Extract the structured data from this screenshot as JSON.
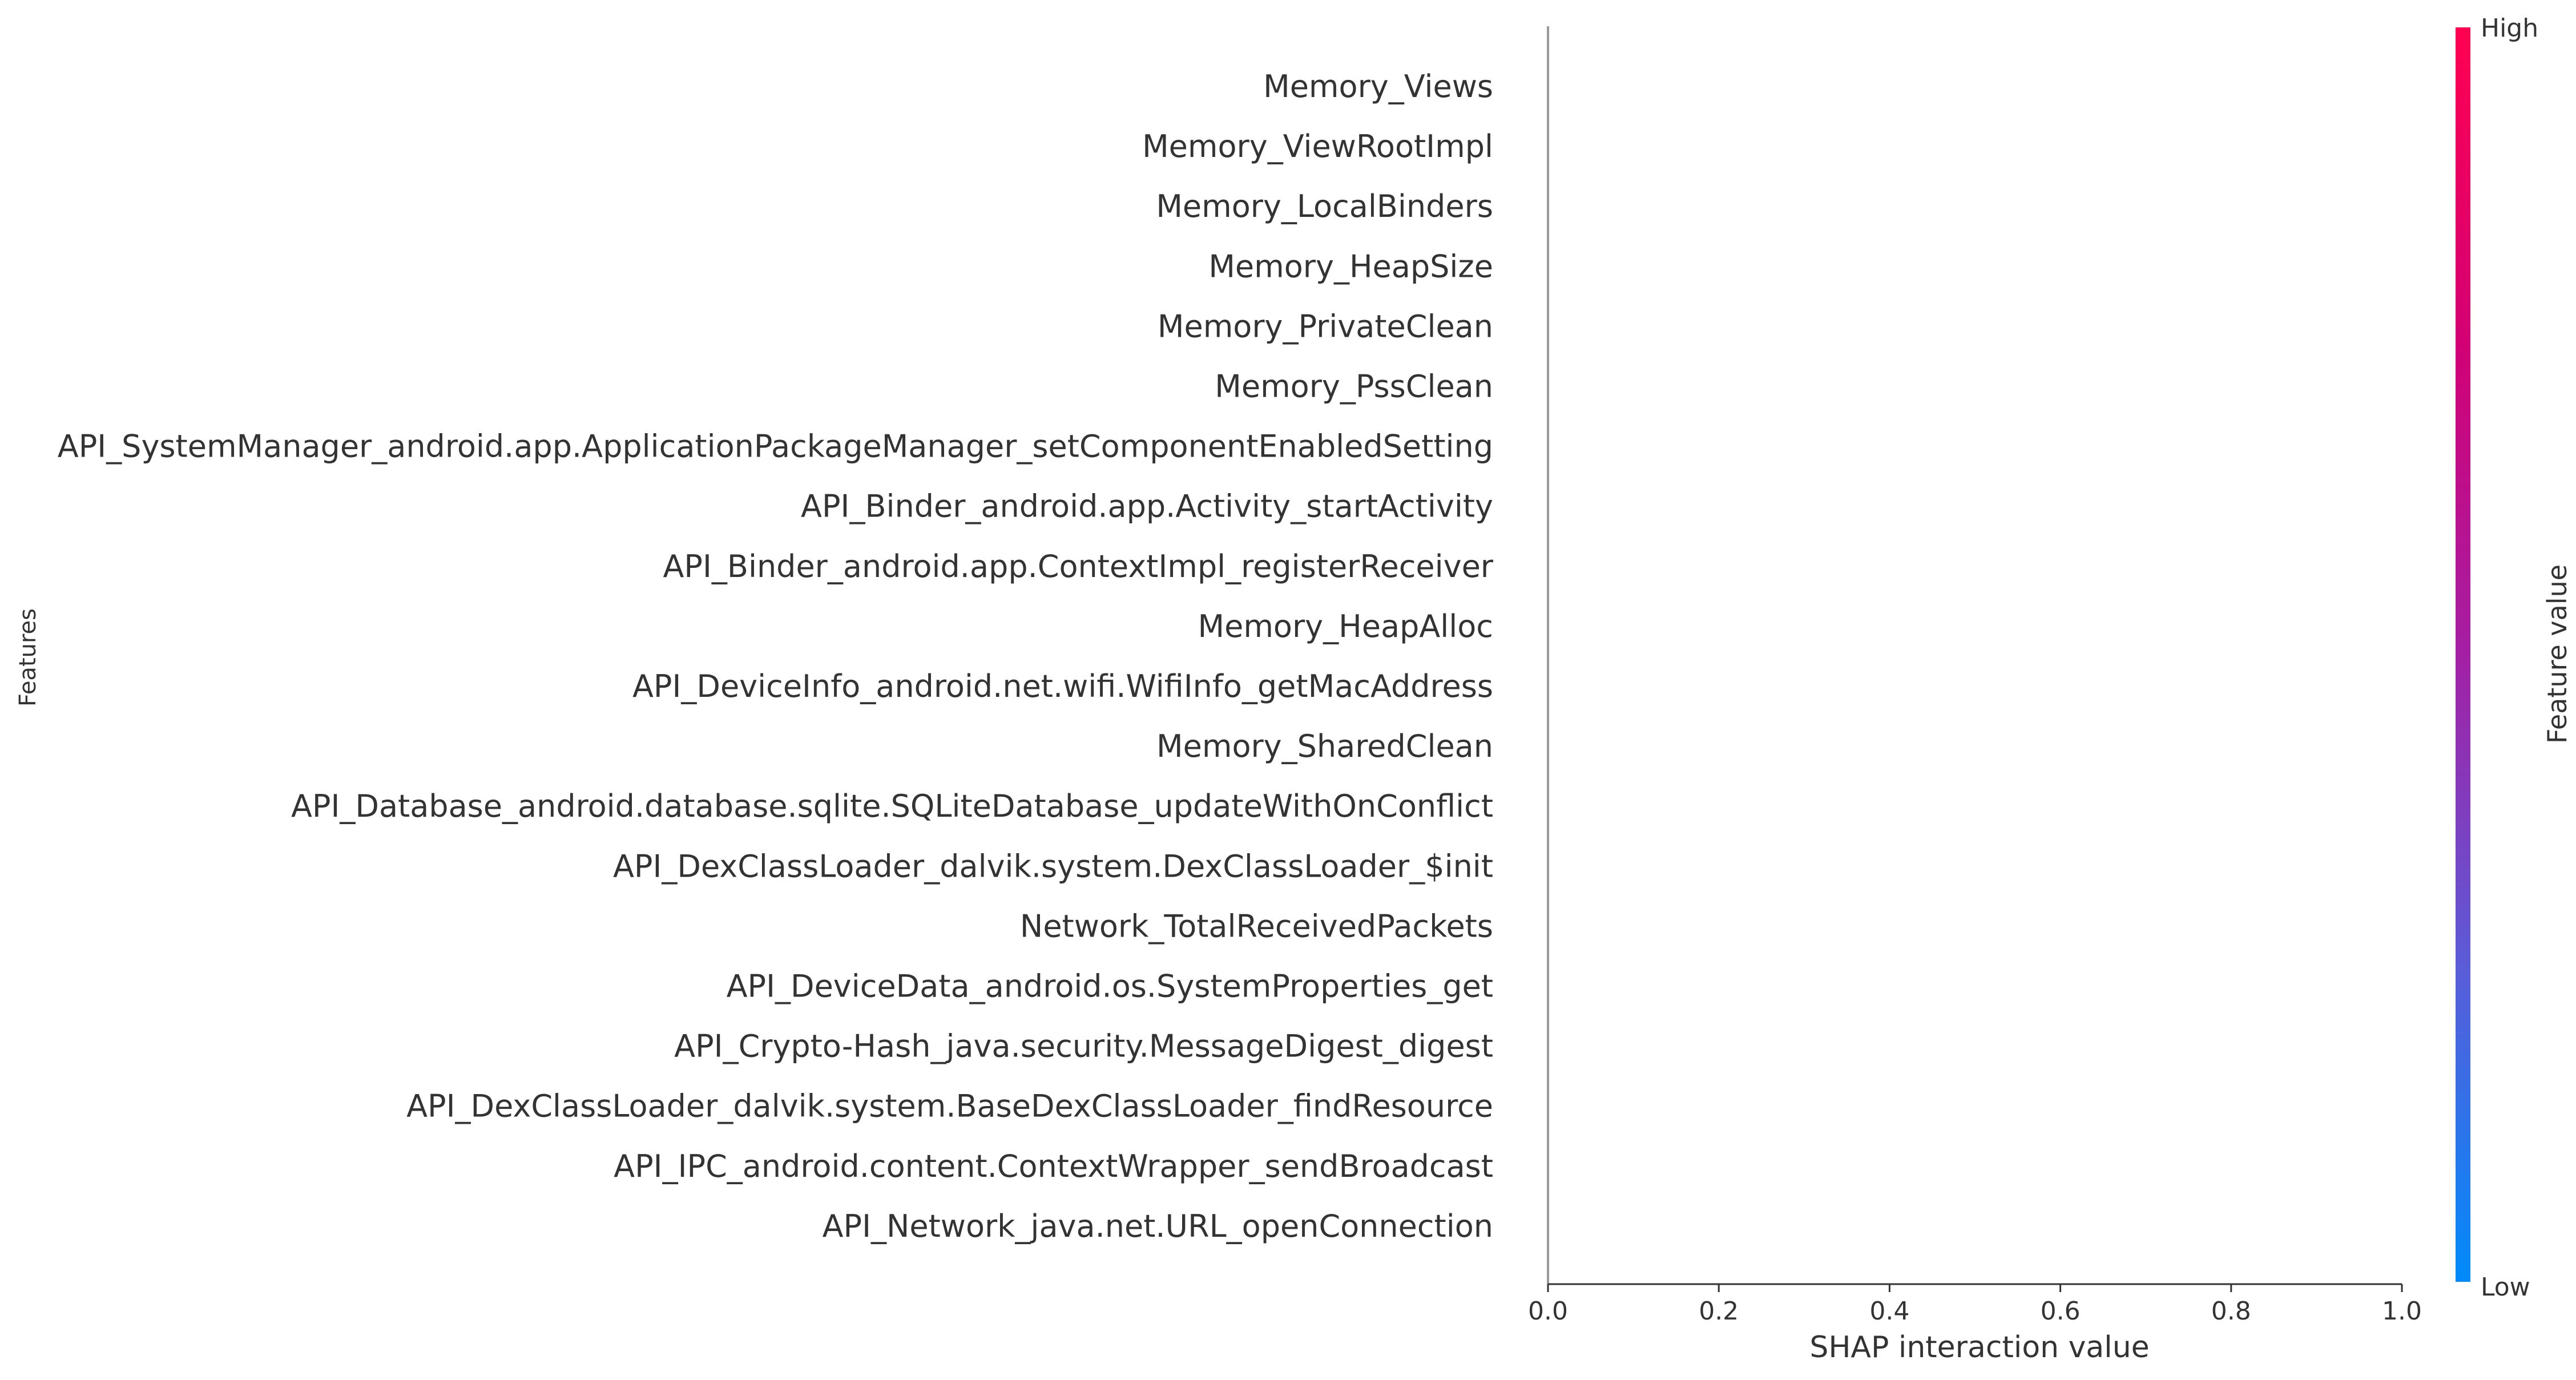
{
  "chart_data": {
    "type": "scatter",
    "title": "",
    "xlabel": "SHAP interaction value",
    "ylabel": "Features",
    "xlim": [
      0.0,
      1.0
    ],
    "x_ticks": [
      "0.0",
      "0.2",
      "0.4",
      "0.6",
      "0.8",
      "1.0"
    ],
    "features": [
      "Memory_Views",
      "Memory_ViewRootImpl",
      "Memory_LocalBinders",
      "Memory_HeapSize",
      "Memory_PrivateClean",
      "Memory_PssClean",
      "API_SystemManager_android.app.ApplicationPackageManager_setComponentEnabledSetting",
      "API_Binder_android.app.Activity_startActivity",
      "API_Binder_android.app.ContextImpl_registerReceiver",
      "Memory_HeapAlloc",
      "API_DeviceInfo_android.net.wifi.WifiInfo_getMacAddress",
      "Memory_SharedClean",
      "API_Database_android.database.sqlite.SQLiteDatabase_updateWithOnConflict",
      "API_DexClassLoader_dalvik.system.DexClassLoader_$init",
      "Network_TotalReceivedPackets",
      "API_DeviceData_android.os.SystemProperties_get",
      "API_Crypto-Hash_java.security.MessageDigest_digest",
      "API_DexClassLoader_dalvik.system.BaseDexClassLoader_findResource",
      "API_IPC_android.content.ContextWrapper_sendBroadcast",
      "API_Network_java.net.URL_openConnection"
    ],
    "series": [],
    "zero_line": 0.0,
    "grid": false,
    "colorbar": {
      "label": "Feature value",
      "high_label": "High",
      "low_label": "Low",
      "colors": [
        "#008bfb",
        "#5a5cd8",
        "#a41fa4",
        "#d30074",
        "#ff0051"
      ]
    },
    "colors": {
      "axis": "#333333",
      "zero_line": "#999999",
      "text": "#333333"
    }
  }
}
